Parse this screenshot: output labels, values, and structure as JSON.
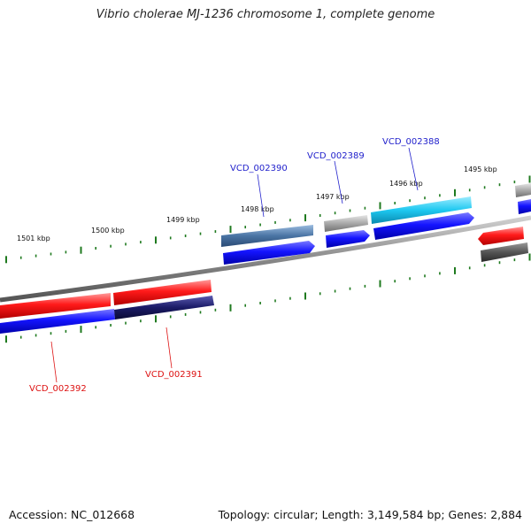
{
  "title": "Vibrio cholerae MJ-1236 chromosome 1, complete genome",
  "footer": {
    "accession": "Accession: NC_012668",
    "summary": "Topology: circular; Length: 3,149,584 bp; Genes: 2,884"
  },
  "colors": {
    "backbone": "#8a8a8a",
    "tick": "#1f7a1f",
    "forward_red": "#ff1a1a",
    "reverse_blue": "#1a1aff",
    "label_blue": "#2222cc",
    "label_red": "#dd1111",
    "steelblue": "#4a74a4",
    "cyan": "#1ec8f0",
    "gray": "#a8a8a8",
    "navy": "#1a1a66",
    "darkgray": "#555555"
  },
  "ticks": [
    {
      "label": "1501 kbp"
    },
    {
      "label": "1500 kbp"
    },
    {
      "label": "1499 kbp"
    },
    {
      "label": "1498 kbp"
    },
    {
      "label": "1497 kbp"
    },
    {
      "label": "1496 kbp"
    },
    {
      "label": "1495 kbp"
    }
  ],
  "gene_labels": [
    {
      "text": "VCD_002390",
      "color": "blue"
    },
    {
      "text": "VCD_002389",
      "color": "blue"
    },
    {
      "text": "VCD_002388",
      "color": "blue"
    },
    {
      "text": "VCD_002392",
      "color": "red"
    },
    {
      "text": "VCD_002391",
      "color": "red"
    }
  ]
}
